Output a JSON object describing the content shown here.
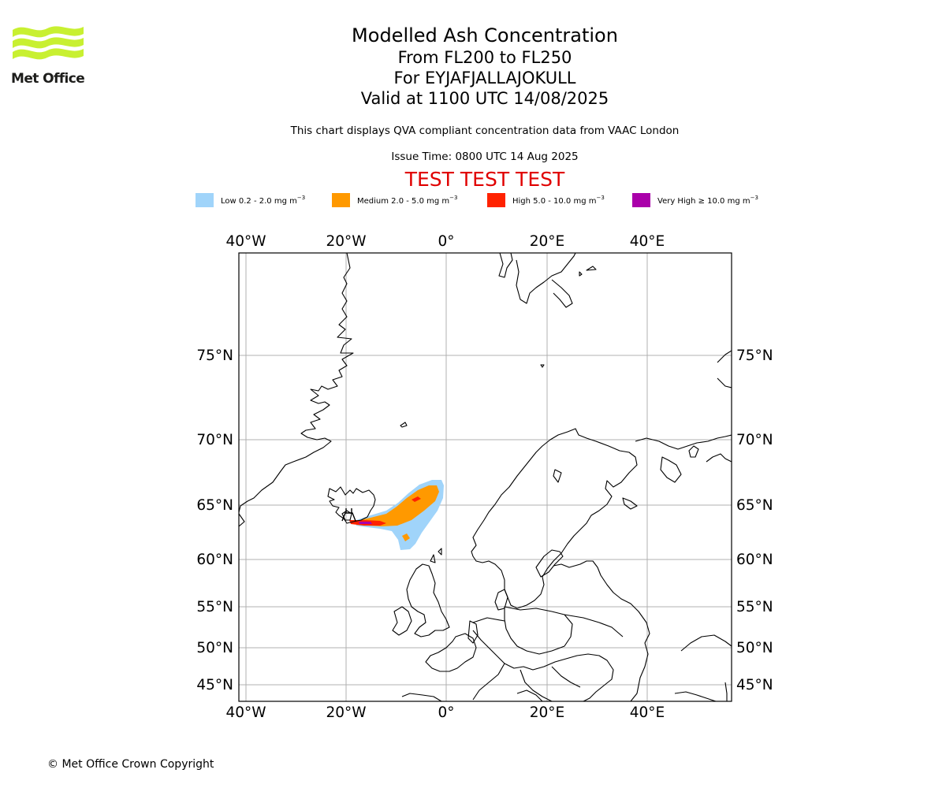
{
  "logo": {
    "text": "Met Office",
    "colors": {
      "waves": "#c8f031",
      "text": "#1d1d1b"
    }
  },
  "titles": {
    "line1": "Modelled Ash Concentration",
    "line2": "From FL200 to FL250",
    "line3": "For EYJAFJALLAJOKULL",
    "line4": "Valid at 1100 UTC 14/08/2025"
  },
  "subtitle": "This chart displays QVA compliant concentration data from VAAC London",
  "issue_time": "Issue Time: 0800 UTC 14 Aug 2025",
  "test_banner": "TEST TEST TEST",
  "legend": [
    {
      "label": "Low 0.2 - 2.0 mg m",
      "unit_sup": "−3",
      "color": "#a0d4fa"
    },
    {
      "label": "Medium 2.0 - 5.0 mg m",
      "unit_sup": "−3",
      "color": "#ff9900"
    },
    {
      "label": "High 5.0 - 10.0 mg m",
      "unit_sup": "−3",
      "color": "#ff2200"
    },
    {
      "label": "Very High ≥ 10.0 mg m",
      "unit_sup": "−3",
      "color": "#aa00aa"
    }
  ],
  "map": {
    "lon_labels": [
      "40°W",
      "20°W",
      "0°",
      "20°E",
      "40°E"
    ],
    "lat_labels": [
      "75°N",
      "70°N",
      "65°N",
      "60°N",
      "55°N",
      "50°N",
      "45°N"
    ],
    "grid": true
  },
  "copyright": "© Met Office Crown Copyright"
}
